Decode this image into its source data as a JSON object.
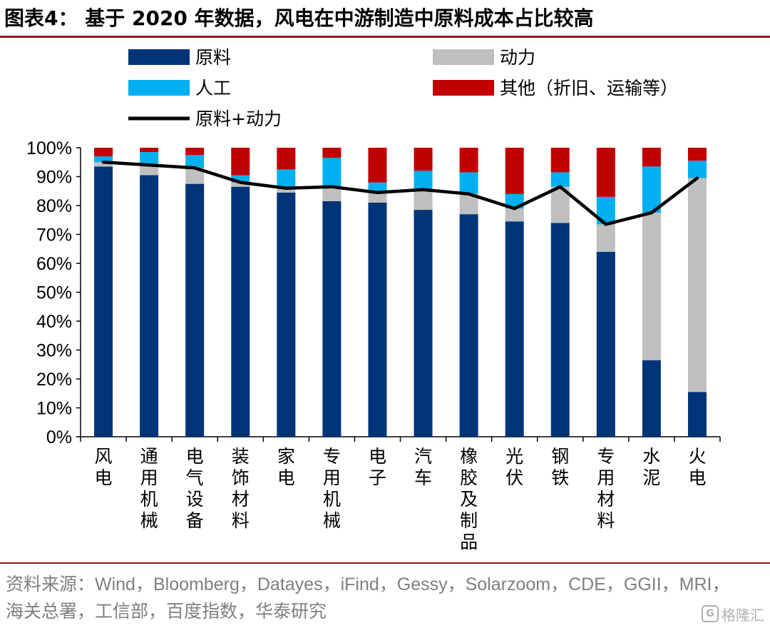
{
  "title": "图表4：  基于 2020 年数据，风电在中游制造中原料成本占比较高",
  "source": "资料来源：Wind，Bloomberg，Datayes，iFind，Gessy，Solarzoom，CDE，GGII，MRI，海关总署，工信部，百度指数，华泰研究",
  "watermark": {
    "text": "格隆汇",
    "icon": "G"
  },
  "colors": {
    "raw": "#003478",
    "power": "#bfbfbf",
    "labor": "#00b0f0",
    "other": "#c00000",
    "line": "#000000",
    "rule": "#8b1a1a"
  },
  "chart_data": {
    "type": "bar",
    "stacked": true,
    "categories": [
      "风电",
      "通用机械",
      "电气设备",
      "装饰材料",
      "家电",
      "专用机械",
      "电子",
      "汽车",
      "橡胶及制品",
      "光伏",
      "钢铁",
      "专用材料",
      "水泥",
      "火电"
    ],
    "series": [
      {
        "name": "原料",
        "key": "raw",
        "values": [
          93.5,
          90.5,
          87.5,
          86.5,
          84.5,
          81.5,
          81,
          78.5,
          77,
          74.5,
          74,
          64,
          26.5,
          15.5
        ]
      },
      {
        "name": "动力",
        "key": "power",
        "values": [
          1.5,
          3.5,
          5.5,
          1.5,
          1.5,
          5,
          3.5,
          7,
          7,
          4.5,
          12.5,
          9.5,
          51,
          74
        ]
      },
      {
        "name": "人工",
        "key": "labor",
        "values": [
          2,
          4.5,
          4.5,
          2.5,
          6.5,
          10,
          3.5,
          6.5,
          7.5,
          5,
          5,
          9.5,
          16,
          6
        ]
      },
      {
        "name": "其他（折旧、运输等）",
        "key": "other",
        "values": [
          3,
          1.5,
          2.5,
          9.5,
          7.5,
          3.5,
          12,
          8,
          8.5,
          16,
          8.5,
          17,
          6.5,
          4.5
        ]
      }
    ],
    "line": {
      "name": "原料+动力",
      "values": [
        95,
        94,
        93,
        88,
        86,
        86.5,
        84.5,
        85.5,
        84,
        79,
        86.5,
        73.5,
        77.5,
        89.5
      ]
    },
    "ylim": [
      0,
      100
    ],
    "yticks": [
      "0%",
      "10%",
      "20%",
      "30%",
      "40%",
      "50%",
      "60%",
      "70%",
      "80%",
      "90%",
      "100%"
    ],
    "legend": {
      "placement": "top",
      "entries": [
        "原料",
        "动力",
        "人工",
        "其他（折旧、运输等）",
        "原料+动力"
      ]
    },
    "grid": false
  }
}
